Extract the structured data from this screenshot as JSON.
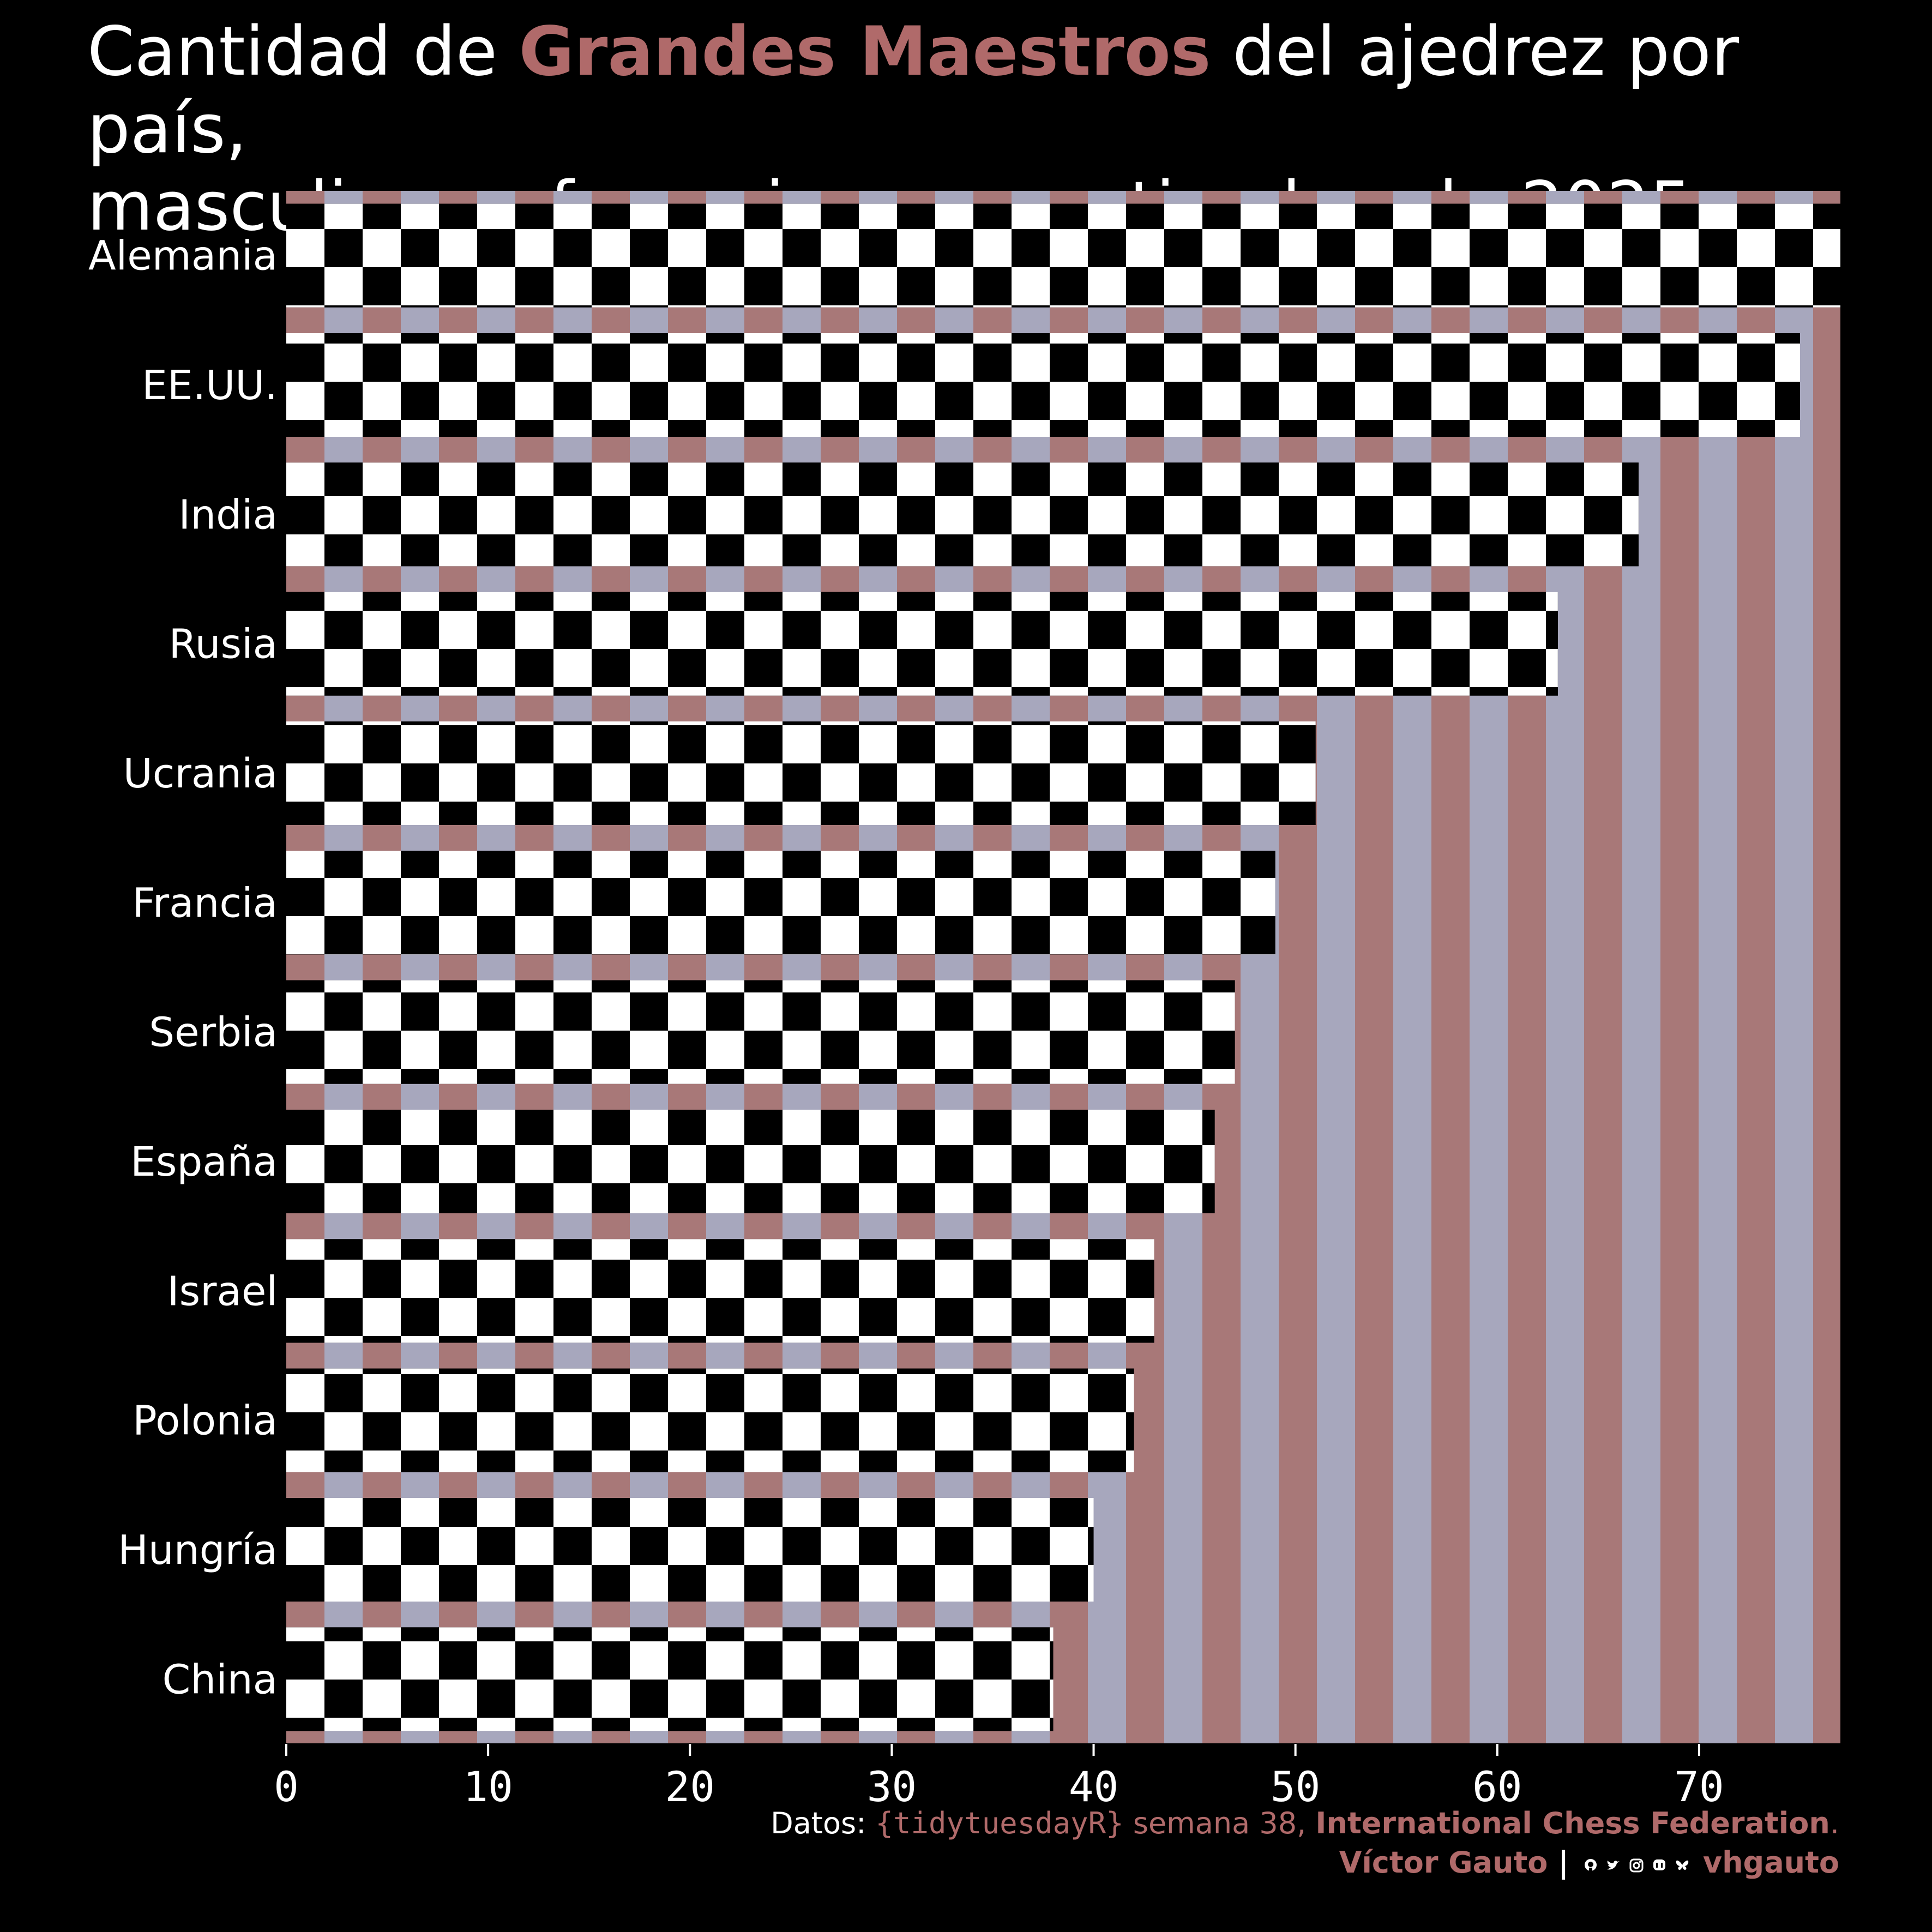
{
  "title": {
    "pre": "Cantidad de ",
    "highlight": "Grandes Maestros",
    "post1": " del ajedrez por país,",
    "line2": "masculinos y femeninos, a septiembre de 2025"
  },
  "colors": {
    "background": "#000000",
    "accent": "#b06a6a",
    "stripe_rose": "#a87878",
    "stripe_lavender": "#a7a7bd",
    "square_dark": "#000000",
    "square_light": "#ffffff"
  },
  "chart_data": {
    "type": "bar",
    "orientation": "horizontal",
    "categories": [
      "Alemania",
      "EE.UU.",
      "India",
      "Rusia",
      "Ucrania",
      "Francia",
      "Serbia",
      "España",
      "Israel",
      "Polonia",
      "Hungría",
      "China"
    ],
    "values": [
      77,
      75,
      67,
      63,
      51,
      49,
      47,
      46,
      43,
      42,
      40,
      38
    ],
    "xlim": [
      0,
      77
    ],
    "xticks": [
      "0",
      "10",
      "20",
      "30",
      "40",
      "50",
      "60",
      "70"
    ],
    "grid": false,
    "legend": "none"
  },
  "caption": {
    "datos_label": "Datos: ",
    "source_pkg": "{tidytuesdayR}",
    "source_week": " semana 38, ",
    "source_org": "International Chess Federation",
    "source_end": ".",
    "author": "Víctor Gauto",
    "separator": " | ",
    "social_icons": [
      "github-icon",
      "twitter-icon",
      "instagram-icon",
      "mastodon-icon",
      "bluesky-icon"
    ],
    "handle": "vhgauto"
  }
}
